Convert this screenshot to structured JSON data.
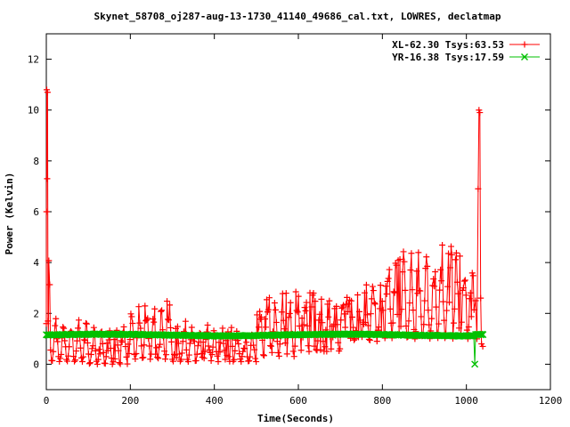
{
  "chart_data": {
    "type": "line",
    "title": "Skynet_58708_oj287-aug-13-1730_41140_49686_cal.txt, LOWRES, declatmap",
    "xlabel": "Time(Seconds)",
    "ylabel": "Power (Kelvin)",
    "xlim": [
      0,
      1200
    ],
    "ylim": [
      -1,
      13
    ],
    "xticks": [
      0,
      200,
      400,
      600,
      800,
      1000,
      1200
    ],
    "yticks": [
      0,
      2,
      4,
      6,
      8,
      10,
      12
    ],
    "grid": false,
    "legend_position": "top-right",
    "series": [
      {
        "name": "XL-62.30 Tsys:63.53",
        "color": "#ff0000",
        "marker": "plus",
        "description_points": [
          [
            0,
            1.6
          ],
          [
            1,
            10.8
          ],
          [
            3,
            10.7
          ],
          [
            5,
            1.7
          ],
          [
            8,
            0.5
          ],
          [
            40,
            0.4
          ],
          [
            80,
            0.3
          ],
          [
            120,
            0.3
          ],
          [
            160,
            0.6
          ],
          [
            200,
            1.0
          ],
          [
            240,
            1.5
          ],
          [
            270,
            1.7
          ],
          [
            300,
            1.5
          ],
          [
            340,
            1.0
          ],
          [
            380,
            0.6
          ],
          [
            420,
            0.5
          ],
          [
            460,
            0.6
          ],
          [
            500,
            0.9
          ],
          [
            540,
            1.1
          ],
          [
            580,
            1.2
          ],
          [
            620,
            1.3
          ],
          [
            660,
            1.5
          ],
          [
            700,
            1.7
          ],
          [
            740,
            1.9
          ],
          [
            780,
            2.1
          ],
          [
            820,
            2.5
          ],
          [
            860,
            2.7
          ],
          [
            900,
            2.9
          ],
          [
            940,
            3.0
          ],
          [
            980,
            3.1
          ],
          [
            1020,
            3.2
          ],
          [
            1025,
            2.0
          ],
          [
            1030,
            9.9
          ],
          [
            1033,
            10.0
          ],
          [
            1036,
            0.8
          ],
          [
            1040,
            0.7
          ]
        ],
        "oscillation_bands": [
          {
            "x_range": [
              10,
              100
            ],
            "low": 0.1,
            "high": 1.9
          },
          {
            "x_range": [
              100,
              200
            ],
            "low": 0.0,
            "high": 1.6
          },
          {
            "x_range": [
              200,
              300
            ],
            "low": 0.2,
            "high": 2.5
          },
          {
            "x_range": [
              300,
              400
            ],
            "low": 0.1,
            "high": 1.7
          },
          {
            "x_range": [
              400,
              500
            ],
            "low": 0.1,
            "high": 1.5
          },
          {
            "x_range": [
              500,
              600
            ],
            "low": 0.3,
            "high": 2.9
          },
          {
            "x_range": [
              600,
              700
            ],
            "low": 0.5,
            "high": 3.0
          },
          {
            "x_range": [
              700,
              800
            ],
            "low": 0.9,
            "high": 3.4
          },
          {
            "x_range": [
              800,
              900
            ],
            "low": 1.0,
            "high": 4.5
          },
          {
            "x_range": [
              900,
              1020
            ],
            "low": 1.0,
            "high": 4.9
          }
        ]
      },
      {
        "name": "YR-16.38 Tsys:17.59",
        "color": "#00c000",
        "marker": "x",
        "description_points": [
          [
            0,
            1.15
          ],
          [
            100,
            1.15
          ],
          [
            200,
            1.17
          ],
          [
            300,
            1.18
          ],
          [
            400,
            1.17
          ],
          [
            500,
            1.15
          ],
          [
            600,
            1.13
          ],
          [
            700,
            1.13
          ],
          [
            800,
            1.14
          ],
          [
            900,
            1.16
          ],
          [
            1000,
            1.17
          ],
          [
            1018,
            1.17
          ],
          [
            1020,
            0.0
          ],
          [
            1022,
            1.17
          ],
          [
            1040,
            1.18
          ]
        ]
      }
    ]
  }
}
